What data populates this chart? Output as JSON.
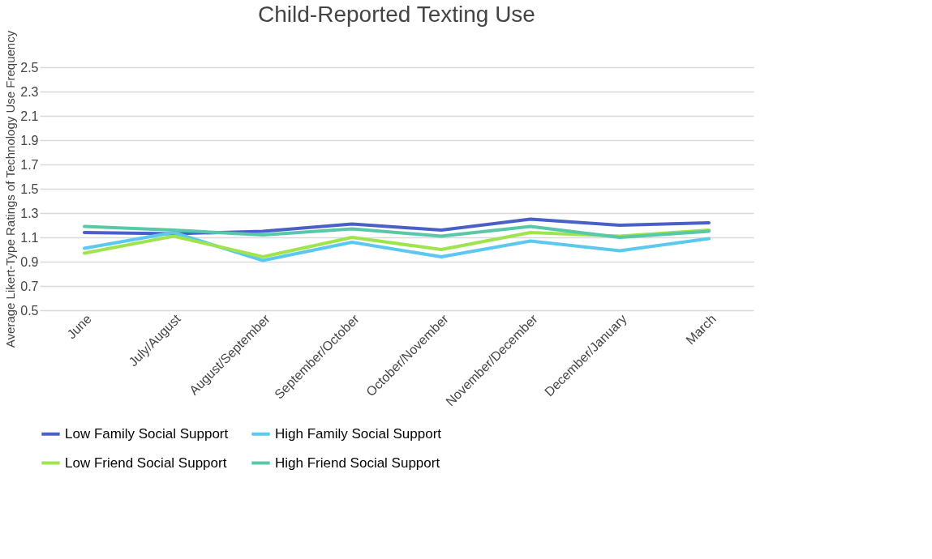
{
  "chart_data": {
    "type": "line",
    "title": "Child-Reported Texting Use",
    "ylabel": "Average Likert-Type Ratings of Technology Use Frequency",
    "categories": [
      "June",
      "July/August",
      "August/September",
      "September/October",
      "October/November",
      "November/December",
      "December/January",
      "March"
    ],
    "series": [
      {
        "name": "Low Family Social Support",
        "color": "#4a5fc8",
        "values": [
          1.14,
          1.13,
          1.15,
          1.21,
          1.16,
          1.25,
          1.2,
          1.22
        ]
      },
      {
        "name": "High Family Social Support",
        "color": "#5bc8f0",
        "values": [
          1.01,
          1.14,
          0.91,
          1.06,
          0.94,
          1.07,
          0.99,
          1.09
        ]
      },
      {
        "name": "Low Friend Social Support",
        "color": "#9fe44c",
        "values": [
          0.97,
          1.11,
          0.94,
          1.1,
          1.0,
          1.14,
          1.11,
          1.16
        ]
      },
      {
        "name": "High Friend Social Support",
        "color": "#57c8a8",
        "values": [
          1.19,
          1.16,
          1.12,
          1.17,
          1.11,
          1.19,
          1.1,
          1.15
        ]
      }
    ],
    "ylim": [
      0.5,
      2.5
    ],
    "yticks": [
      0.5,
      0.7,
      0.9,
      1.1,
      1.3,
      1.5,
      1.7,
      1.9,
      2.1,
      2.3,
      2.5
    ],
    "grid": "y",
    "legend": "bottom",
    "marker": "none",
    "line_style": "solid"
  }
}
